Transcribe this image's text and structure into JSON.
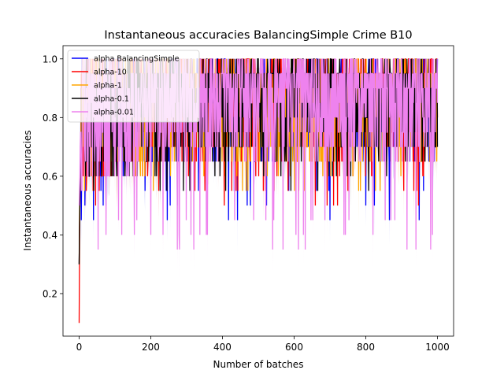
{
  "chart_data": {
    "type": "line",
    "title": "Instantaneous accuracies BalancingSimple Crime B10",
    "xlabel": "Number of batches",
    "ylabel": "Instantaneous accuracies",
    "xlim": [
      -45,
      1045
    ],
    "ylim": [
      0.055,
      1.045
    ],
    "xticks": [
      0,
      200,
      400,
      600,
      800,
      1000
    ],
    "yticks": [
      0.2,
      0.4,
      0.6,
      0.8,
      1.0
    ],
    "xtick_labels": [
      "0",
      "200",
      "400",
      "600",
      "800",
      "1000"
    ],
    "ytick_labels": [
      "0.2",
      "0.4",
      "0.6",
      "0.8",
      "1.0"
    ],
    "grid": false,
    "legend_position": "top-left",
    "n_points": 1001,
    "series": [
      {
        "name": "alpha BalancingSimple",
        "color": "#0000ff",
        "start": [
          0.3,
          0.4,
          0.5,
          0.55,
          0.6
        ],
        "summary": {
          "min_after_warmup": 0.45,
          "max": 1.0,
          "typical_range": [
            0.65,
            1.0
          ]
        }
      },
      {
        "name": "alpha-10",
        "color": "#ff0000",
        "start": [
          0.1,
          0.3,
          0.5,
          0.6,
          0.7
        ],
        "summary": {
          "min_after_warmup": 0.5,
          "max": 1.0,
          "typical_range": [
            0.65,
            1.0
          ]
        }
      },
      {
        "name": "alpha-1",
        "color": "#ffa500",
        "start": [
          0.3,
          0.45,
          0.55,
          0.65,
          0.7
        ],
        "summary": {
          "min_after_warmup": 0.55,
          "max": 1.0,
          "typical_range": [
            0.65,
            1.0
          ]
        }
      },
      {
        "name": "alpha-0.1",
        "color": "#000000",
        "start": [
          0.3,
          0.4,
          0.5,
          0.6,
          0.65
        ],
        "summary": {
          "min_after_warmup": 0.55,
          "max": 1.0,
          "typical_range": [
            0.65,
            1.0
          ]
        }
      },
      {
        "name": "alpha-0.01",
        "color": "#ee82ee",
        "start": [
          0.5,
          0.55,
          0.6,
          0.7,
          0.75
        ],
        "summary": {
          "min_after_warmup": 0.35,
          "max": 1.0,
          "typical_range": [
            0.65,
            0.95
          ]
        }
      }
    ]
  }
}
